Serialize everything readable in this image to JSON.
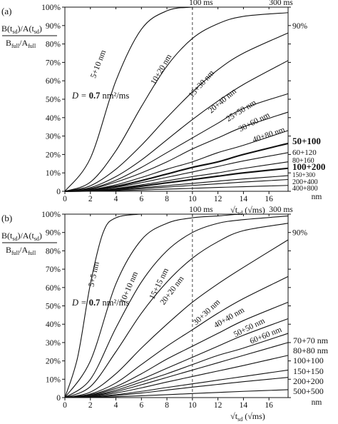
{
  "chart_data": [
    {
      "type": "line",
      "panel_label": "(a)",
      "ylabel_main": "B(t",
      "ylabel_sub": "sd",
      "ylabel_mid": ")/A(t",
      "ylabel_sub2": "sd",
      "ylabel_end": ")",
      "ylabel_den": "B",
      "ylabel_den_sub": "full",
      "ylabel_den_mid": "/A",
      "ylabel_den_sub2": "full",
      "xlabel_root": "√t",
      "xlabel_sub": "sd",
      "xlabel_unit": " (√ms)",
      "xlim": [
        0,
        17.5
      ],
      "ylim": [
        0,
        1
      ],
      "x_ticks": [
        "0",
        "2",
        "4",
        "6",
        "8",
        "10",
        "12",
        "14",
        "16"
      ],
      "y_ticks": [
        "0",
        "10%",
        "20%",
        "30%",
        "40%",
        "50%",
        "60%",
        "70%",
        "80%",
        "90%",
        "100%"
      ],
      "right_ticks": [
        "90%"
      ],
      "top_labels": [
        "100 ms",
        "300 ms"
      ],
      "dashed_x": 10,
      "diffusivity_label": {
        "prefix": "D = ",
        "value": "0.7",
        "unit": " nm²/ms"
      },
      "series": [
        {
          "name": "5+10 nm",
          "values": {
            "x": [
              0,
              2,
              4,
              6,
              8,
              10,
              12,
              14,
              17.5
            ],
            "y": [
              0,
              0.18,
              0.6,
              0.88,
              0.98,
              1.0,
              1.0,
              1.0,
              1.0
            ]
          }
        },
        {
          "name": "10+20 nm",
          "values": {
            "x": [
              0,
              2,
              4,
              6,
              8,
              10,
              12,
              14,
              17.5
            ],
            "y": [
              0,
              0.05,
              0.22,
              0.46,
              0.68,
              0.83,
              0.91,
              0.95,
              0.97
            ]
          }
        },
        {
          "name": "15+30 nm",
          "values": {
            "x": [
              0,
              2,
              4,
              6,
              8,
              10,
              12,
              14,
              17.5
            ],
            "y": [
              0,
              0.03,
              0.12,
              0.25,
              0.4,
              0.54,
              0.66,
              0.75,
              0.86
            ]
          }
        },
        {
          "name": "20+40 nm",
          "values": {
            "x": [
              0,
              2,
              4,
              6,
              8,
              10,
              12,
              14,
              17.5
            ],
            "y": [
              0,
              0.02,
              0.08,
              0.17,
              0.28,
              0.39,
              0.49,
              0.58,
              0.71
            ]
          }
        },
        {
          "name": "25+50 nm",
          "values": {
            "x": [
              0,
              2,
              4,
              6,
              8,
              10,
              12,
              14,
              17.5
            ],
            "y": [
              0,
              0.015,
              0.06,
              0.13,
              0.21,
              0.29,
              0.37,
              0.45,
              0.53
            ]
          }
        },
        {
          "name": "30+60 nm",
          "values": {
            "x": [
              0,
              2,
              4,
              6,
              8,
              10,
              12,
              14,
              17.5
            ],
            "y": [
              0,
              0.012,
              0.05,
              0.1,
              0.16,
              0.23,
              0.29,
              0.35,
              0.43
            ]
          }
        },
        {
          "name": "40+80 nm",
          "values": {
            "x": [
              0,
              2,
              4,
              6,
              8,
              10,
              12,
              14,
              17.5
            ],
            "y": [
              0,
              0.009,
              0.035,
              0.075,
              0.12,
              0.16,
              0.21,
              0.25,
              0.33
            ]
          }
        },
        {
          "name": "50+100",
          "values": {
            "x": [
              0,
              2,
              4,
              6,
              8,
              10,
              12,
              14,
              17.5
            ],
            "y": [
              0,
              0.007,
              0.027,
              0.058,
              0.094,
              0.13,
              0.16,
              0.2,
              0.26
            ]
          },
          "bold": true
        },
        {
          "name": "60+120",
          "values": {
            "x": [
              0,
              2,
              4,
              6,
              8,
              10,
              12,
              14,
              17.5
            ],
            "y": [
              0,
              0.006,
              0.022,
              0.047,
              0.076,
              0.105,
              0.135,
              0.165,
              0.21
            ]
          }
        },
        {
          "name": "80+160",
          "values": {
            "x": [
              0,
              2,
              4,
              6,
              8,
              10,
              12,
              14,
              17.5
            ],
            "y": [
              0,
              0.004,
              0.016,
              0.035,
              0.057,
              0.08,
              0.1,
              0.124,
              0.16
            ]
          }
        },
        {
          "name": "100+200",
          "values": {
            "x": [
              0,
              2,
              4,
              6,
              8,
              10,
              12,
              14,
              17.5
            ],
            "y": [
              0,
              0.003,
              0.013,
              0.028,
              0.046,
              0.064,
              0.082,
              0.1,
              0.125
            ]
          },
          "bold": true
        },
        {
          "name": "150+300",
          "values": {
            "x": [
              0,
              2,
              4,
              6,
              8,
              10,
              12,
              14,
              17.5
            ],
            "y": [
              0,
              0.002,
              0.009,
              0.019,
              0.031,
              0.043,
              0.055,
              0.067,
              0.085
            ]
          }
        },
        {
          "name": "200+400",
          "values": {
            "x": [
              0,
              2,
              4,
              6,
              8,
              10,
              12,
              14,
              17.5
            ],
            "y": [
              0,
              0.0015,
              0.007,
              0.014,
              0.023,
              0.032,
              0.041,
              0.05,
              0.064
            ]
          }
        },
        {
          "name": "400+800",
          "values": {
            "x": [
              0,
              2,
              4,
              6,
              8,
              10,
              12,
              14,
              17.5
            ],
            "y": [
              0,
              0.0008,
              0.0035,
              0.007,
              0.012,
              0.016,
              0.021,
              0.025,
              0.032
            ]
          }
        }
      ],
      "right_unit": "nm"
    },
    {
      "type": "line",
      "panel_label": "(b)",
      "ylabel_main": "B(t",
      "ylabel_sub": "sd",
      "ylabel_mid": ")/A(t",
      "ylabel_sub2": "sd",
      "ylabel_end": ")",
      "ylabel_den": "B",
      "ylabel_den_sub": "full",
      "ylabel_den_mid": "/A",
      "ylabel_den_sub2": "full",
      "xlabel_root": "√t",
      "xlabel_sub": "sd",
      "xlabel_unit": " (√ms)",
      "xlim": [
        0,
        17.5
      ],
      "ylim": [
        0,
        1
      ],
      "x_ticks": [
        "0",
        "2",
        "4",
        "6",
        "8",
        "10",
        "12",
        "14",
        "16"
      ],
      "y_ticks": [
        "0",
        "10%",
        "20%",
        "30%",
        "40%",
        "50%",
        "60%",
        "70%",
        "80%",
        "90%",
        "100%"
      ],
      "right_ticks": [
        "90%"
      ],
      "top_labels": [
        "100 ms",
        "300 ms"
      ],
      "dashed_x": 10,
      "diffusivity_label": {
        "prefix": "D = ",
        "value": "0.7",
        "unit": " nm²/ms"
      },
      "series": [
        {
          "name": "5+5 nm",
          "values": {
            "x": [
              0,
              1,
              2,
              3,
              4,
              6,
              8,
              17.5
            ],
            "y": [
              0,
              0.22,
              0.62,
              0.9,
              0.98,
              1.0,
              1.0,
              1.0
            ]
          }
        },
        {
          "name": "10+10 nm",
          "values": {
            "x": [
              0,
              2,
              4,
              6,
              8,
              10,
              12,
              14,
              17.5
            ],
            "y": [
              0,
              0.2,
              0.62,
              0.86,
              0.95,
              0.98,
              0.99,
              1.0,
              1.0
            ]
          }
        },
        {
          "name": "15+15 nm",
          "values": {
            "x": [
              0,
              2,
              4,
              6,
              8,
              10,
              12,
              14,
              17.5
            ],
            "y": [
              0,
              0.1,
              0.38,
              0.63,
              0.8,
              0.9,
              0.95,
              0.97,
              0.99
            ]
          }
        },
        {
          "name": "20+20 nm",
          "values": {
            "x": [
              0,
              2,
              4,
              6,
              8,
              10,
              12,
              14,
              17.5
            ],
            "y": [
              0,
              0.06,
              0.25,
              0.46,
              0.63,
              0.76,
              0.85,
              0.91,
              0.95
            ]
          }
        },
        {
          "name": "30+30 nm",
          "values": {
            "x": [
              0,
              2,
              4,
              6,
              8,
              10,
              12,
              14,
              17.5
            ],
            "y": [
              0,
              0.03,
              0.13,
              0.27,
              0.4,
              0.52,
              0.62,
              0.71,
              0.86
            ]
          }
        },
        {
          "name": "40+40 nm",
          "values": {
            "x": [
              0,
              2,
              4,
              6,
              8,
              10,
              12,
              14,
              17.5
            ],
            "y": [
              0,
              0.02,
              0.08,
              0.18,
              0.28,
              0.37,
              0.46,
              0.54,
              0.66
            ]
          }
        },
        {
          "name": "50+50 nm",
          "values": {
            "x": [
              0,
              2,
              4,
              6,
              8,
              10,
              12,
              14,
              17.5
            ],
            "y": [
              0,
              0.016,
              0.06,
              0.13,
              0.21,
              0.28,
              0.35,
              0.42,
              0.52
            ]
          }
        },
        {
          "name": "60+60 nm",
          "values": {
            "x": [
              0,
              2,
              4,
              6,
              8,
              10,
              12,
              14,
              17.5
            ],
            "y": [
              0,
              0.012,
              0.05,
              0.1,
              0.16,
              0.22,
              0.28,
              0.34,
              0.43
            ]
          }
        },
        {
          "name": "70+70 nm",
          "values": {
            "x": [
              0,
              2,
              4,
              6,
              8,
              10,
              12,
              14,
              17.5
            ],
            "y": [
              0,
              0.01,
              0.04,
              0.085,
              0.13,
              0.18,
              0.23,
              0.27,
              0.35
            ]
          }
        },
        {
          "name": "80+80 nm",
          "values": {
            "x": [
              0,
              2,
              4,
              6,
              8,
              10,
              12,
              14,
              17.5
            ],
            "y": [
              0,
              0.008,
              0.033,
              0.07,
              0.11,
              0.15,
              0.19,
              0.23,
              0.3
            ]
          }
        },
        {
          "name": "100+100",
          "values": {
            "x": [
              0,
              2,
              4,
              6,
              8,
              10,
              12,
              14,
              17.5
            ],
            "y": [
              0,
              0.006,
              0.025,
              0.053,
              0.085,
              0.115,
              0.145,
              0.175,
              0.23
            ]
          }
        },
        {
          "name": "150+150",
          "values": {
            "x": [
              0,
              2,
              4,
              6,
              8,
              10,
              12,
              14,
              17.5
            ],
            "y": [
              0,
              0.004,
              0.016,
              0.034,
              0.055,
              0.075,
              0.095,
              0.115,
              0.15
            ]
          }
        },
        {
          "name": "200+200",
          "values": {
            "x": [
              0,
              2,
              4,
              6,
              8,
              10,
              12,
              14,
              17.5
            ],
            "y": [
              0,
              0.003,
              0.012,
              0.025,
              0.041,
              0.057,
              0.072,
              0.087,
              0.11
            ]
          }
        },
        {
          "name": "500+500",
          "values": {
            "x": [
              0,
              2,
              4,
              6,
              8,
              10,
              12,
              14,
              17.5
            ],
            "y": [
              0,
              0.0012,
              0.005,
              0.01,
              0.016,
              0.022,
              0.028,
              0.034,
              0.043
            ]
          }
        }
      ],
      "right_unit": "nm"
    }
  ]
}
